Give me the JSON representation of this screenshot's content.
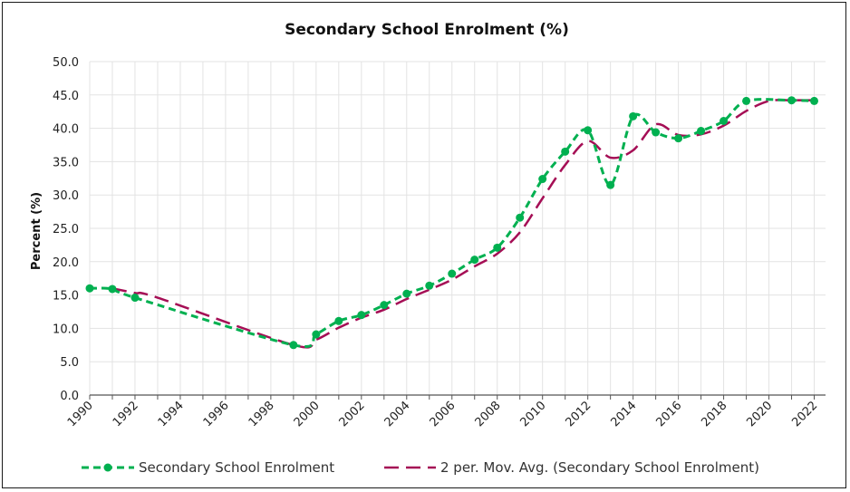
{
  "chart_data": {
    "type": "line",
    "title": "Secondary School Enrolment (%)",
    "xlabel": "",
    "ylabel": "Percent (%)",
    "xlim": [
      1990,
      2022
    ],
    "ylim": [
      0,
      50
    ],
    "grid": true,
    "legend_position": "bottom",
    "x_ticks": [
      "1990",
      "1992",
      "1994",
      "1996",
      "1998",
      "2000",
      "2002",
      "2004",
      "2006",
      "2008",
      "2010",
      "2012",
      "2014",
      "2016",
      "2018",
      "2020",
      "2022"
    ],
    "y_ticks": [
      "0.0",
      "5.0",
      "10.0",
      "15.0",
      "20.0",
      "25.0",
      "30.0",
      "35.0",
      "40.0",
      "45.0",
      "50.0"
    ],
    "series": [
      {
        "name": "Secondary School Enrolment",
        "color": "#00b050",
        "style": "dashed-with-markers",
        "points": [
          [
            1990,
            16.0
          ],
          [
            1991,
            15.9
          ],
          [
            1992,
            14.6
          ],
          [
            1999,
            7.5
          ],
          [
            2000,
            9.1
          ],
          [
            2001,
            11.1
          ],
          [
            2002,
            12.0
          ],
          [
            2003,
            13.5
          ],
          [
            2004,
            15.2
          ],
          [
            2005,
            16.4
          ],
          [
            2006,
            18.2
          ],
          [
            2007,
            20.3
          ],
          [
            2008,
            22.1
          ],
          [
            2009,
            26.6
          ],
          [
            2010,
            32.4
          ],
          [
            2011,
            36.5
          ],
          [
            2012,
            39.7
          ],
          [
            2013,
            31.5
          ],
          [
            2014,
            41.8
          ],
          [
            2015,
            39.4
          ],
          [
            2016,
            38.5
          ],
          [
            2017,
            39.6
          ],
          [
            2018,
            41.1
          ],
          [
            2019,
            44.1
          ],
          [
            2021,
            44.2
          ],
          [
            2022,
            44.1
          ]
        ]
      },
      {
        "name": "2 per. Mov. Avg. (Secondary School Enrolment)",
        "color": "#a50e55",
        "style": "long-dash",
        "points": [
          [
            1991,
            16.0
          ],
          [
            1992,
            15.3
          ],
          [
            1993,
            14.6
          ],
          [
            1999,
            7.5
          ],
          [
            2000,
            8.3
          ],
          [
            2001,
            10.1
          ],
          [
            2002,
            11.6
          ],
          [
            2003,
            12.8
          ],
          [
            2004,
            14.4
          ],
          [
            2005,
            15.8
          ],
          [
            2006,
            17.3
          ],
          [
            2007,
            19.3
          ],
          [
            2008,
            21.2
          ],
          [
            2009,
            24.4
          ],
          [
            2010,
            29.5
          ],
          [
            2011,
            34.5
          ],
          [
            2012,
            38.1
          ],
          [
            2013,
            35.6
          ],
          [
            2014,
            36.7
          ],
          [
            2015,
            40.6
          ],
          [
            2016,
            39.0
          ],
          [
            2017,
            39.1
          ],
          [
            2018,
            40.4
          ],
          [
            2019,
            42.6
          ],
          [
            2020,
            44.1
          ],
          [
            2021,
            44.2
          ],
          [
            2022,
            44.2
          ]
        ]
      }
    ]
  }
}
